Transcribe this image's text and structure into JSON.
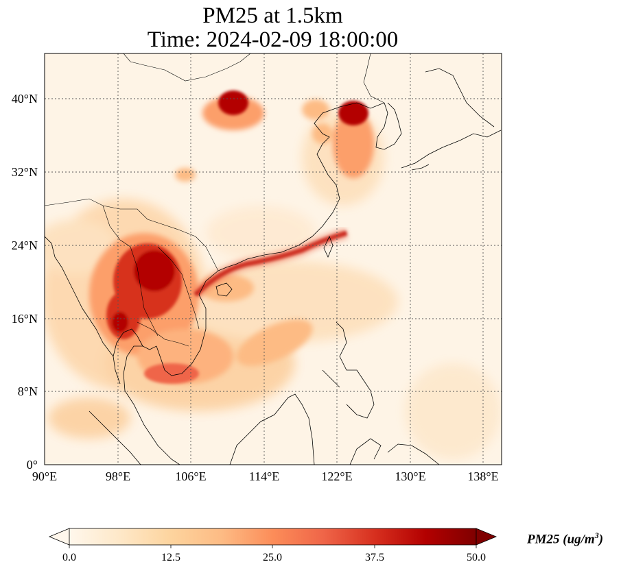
{
  "title": {
    "line1": "PM25 at 1.5km",
    "line2": "Time: 2024-02-09 18:00:00"
  },
  "map": {
    "variable": "PM25",
    "level": "1.5km",
    "colormap": "OrRd",
    "lon_ticks": [
      "90°E",
      "98°E",
      "106°E",
      "114°E",
      "122°E",
      "130°E",
      "138°E"
    ],
    "lat_ticks": [
      "0°",
      "8°N",
      "16°N",
      "24°N",
      "32°N",
      "40°N"
    ],
    "lon_range": [
      90,
      140
    ],
    "lat_range": [
      0,
      45
    ],
    "gridlines": "dotted",
    "hotspots": [
      {
        "region": "Indochina (northern Thailand / Laos / Myanmar)",
        "level": "high"
      },
      {
        "region": "Southeast China coast",
        "level": "high"
      },
      {
        "region": "Northeast China / Liaoning",
        "level": "high"
      },
      {
        "region": "Inner Mongolia / Shanxi",
        "level": "high"
      }
    ]
  },
  "colorbar": {
    "label_main": "PM25 (ug/m",
    "label_sup": "3",
    "label_end": ")",
    "ticks": [
      "0.0",
      "12.5",
      "25.0",
      "37.5",
      "50.0"
    ],
    "vmin": 0,
    "vmax": 50,
    "extend": "both",
    "colors": [
      "#fff7ec",
      "#fee8c8",
      "#fdd49e",
      "#fdbb84",
      "#fc8d59",
      "#ef6548",
      "#d7301f",
      "#b30000",
      "#7f0000"
    ]
  }
}
